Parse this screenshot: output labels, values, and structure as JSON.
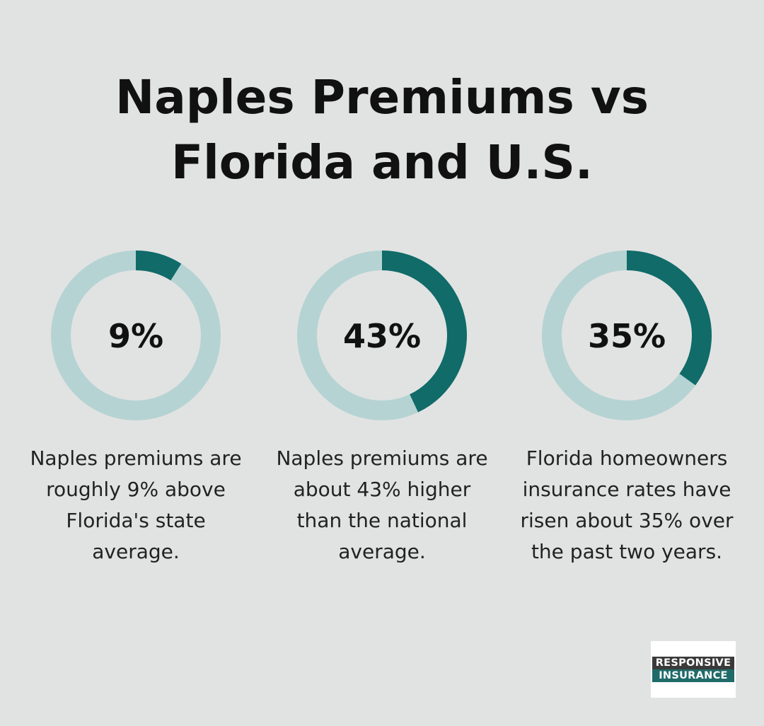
{
  "title": "Naples Premiums vs Florida and U.S.",
  "chart_data": [
    {
      "type": "donut",
      "values": [
        9
      ],
      "value_labels": [
        "9%"
      ],
      "color": "#106b69",
      "track_color": "#b6d3d3",
      "caption": "Naples premiums are roughly 9% above Florida's state average."
    },
    {
      "type": "donut",
      "values": [
        43
      ],
      "value_labels": [
        "43%"
      ],
      "color": "#106b69",
      "track_color": "#b6d3d3",
      "caption": "Naples premiums are about 43% higher than the national average."
    },
    {
      "type": "donut",
      "values": [
        35
      ],
      "value_labels": [
        "35%"
      ],
      "color": "#106b69",
      "track_color": "#b6d3d3",
      "caption": "Florida homeowners insurance rates have risen about 35% over the past two years."
    }
  ],
  "logo": {
    "line1": "RESPONSIVE",
    "line2": "INSURANCE"
  }
}
